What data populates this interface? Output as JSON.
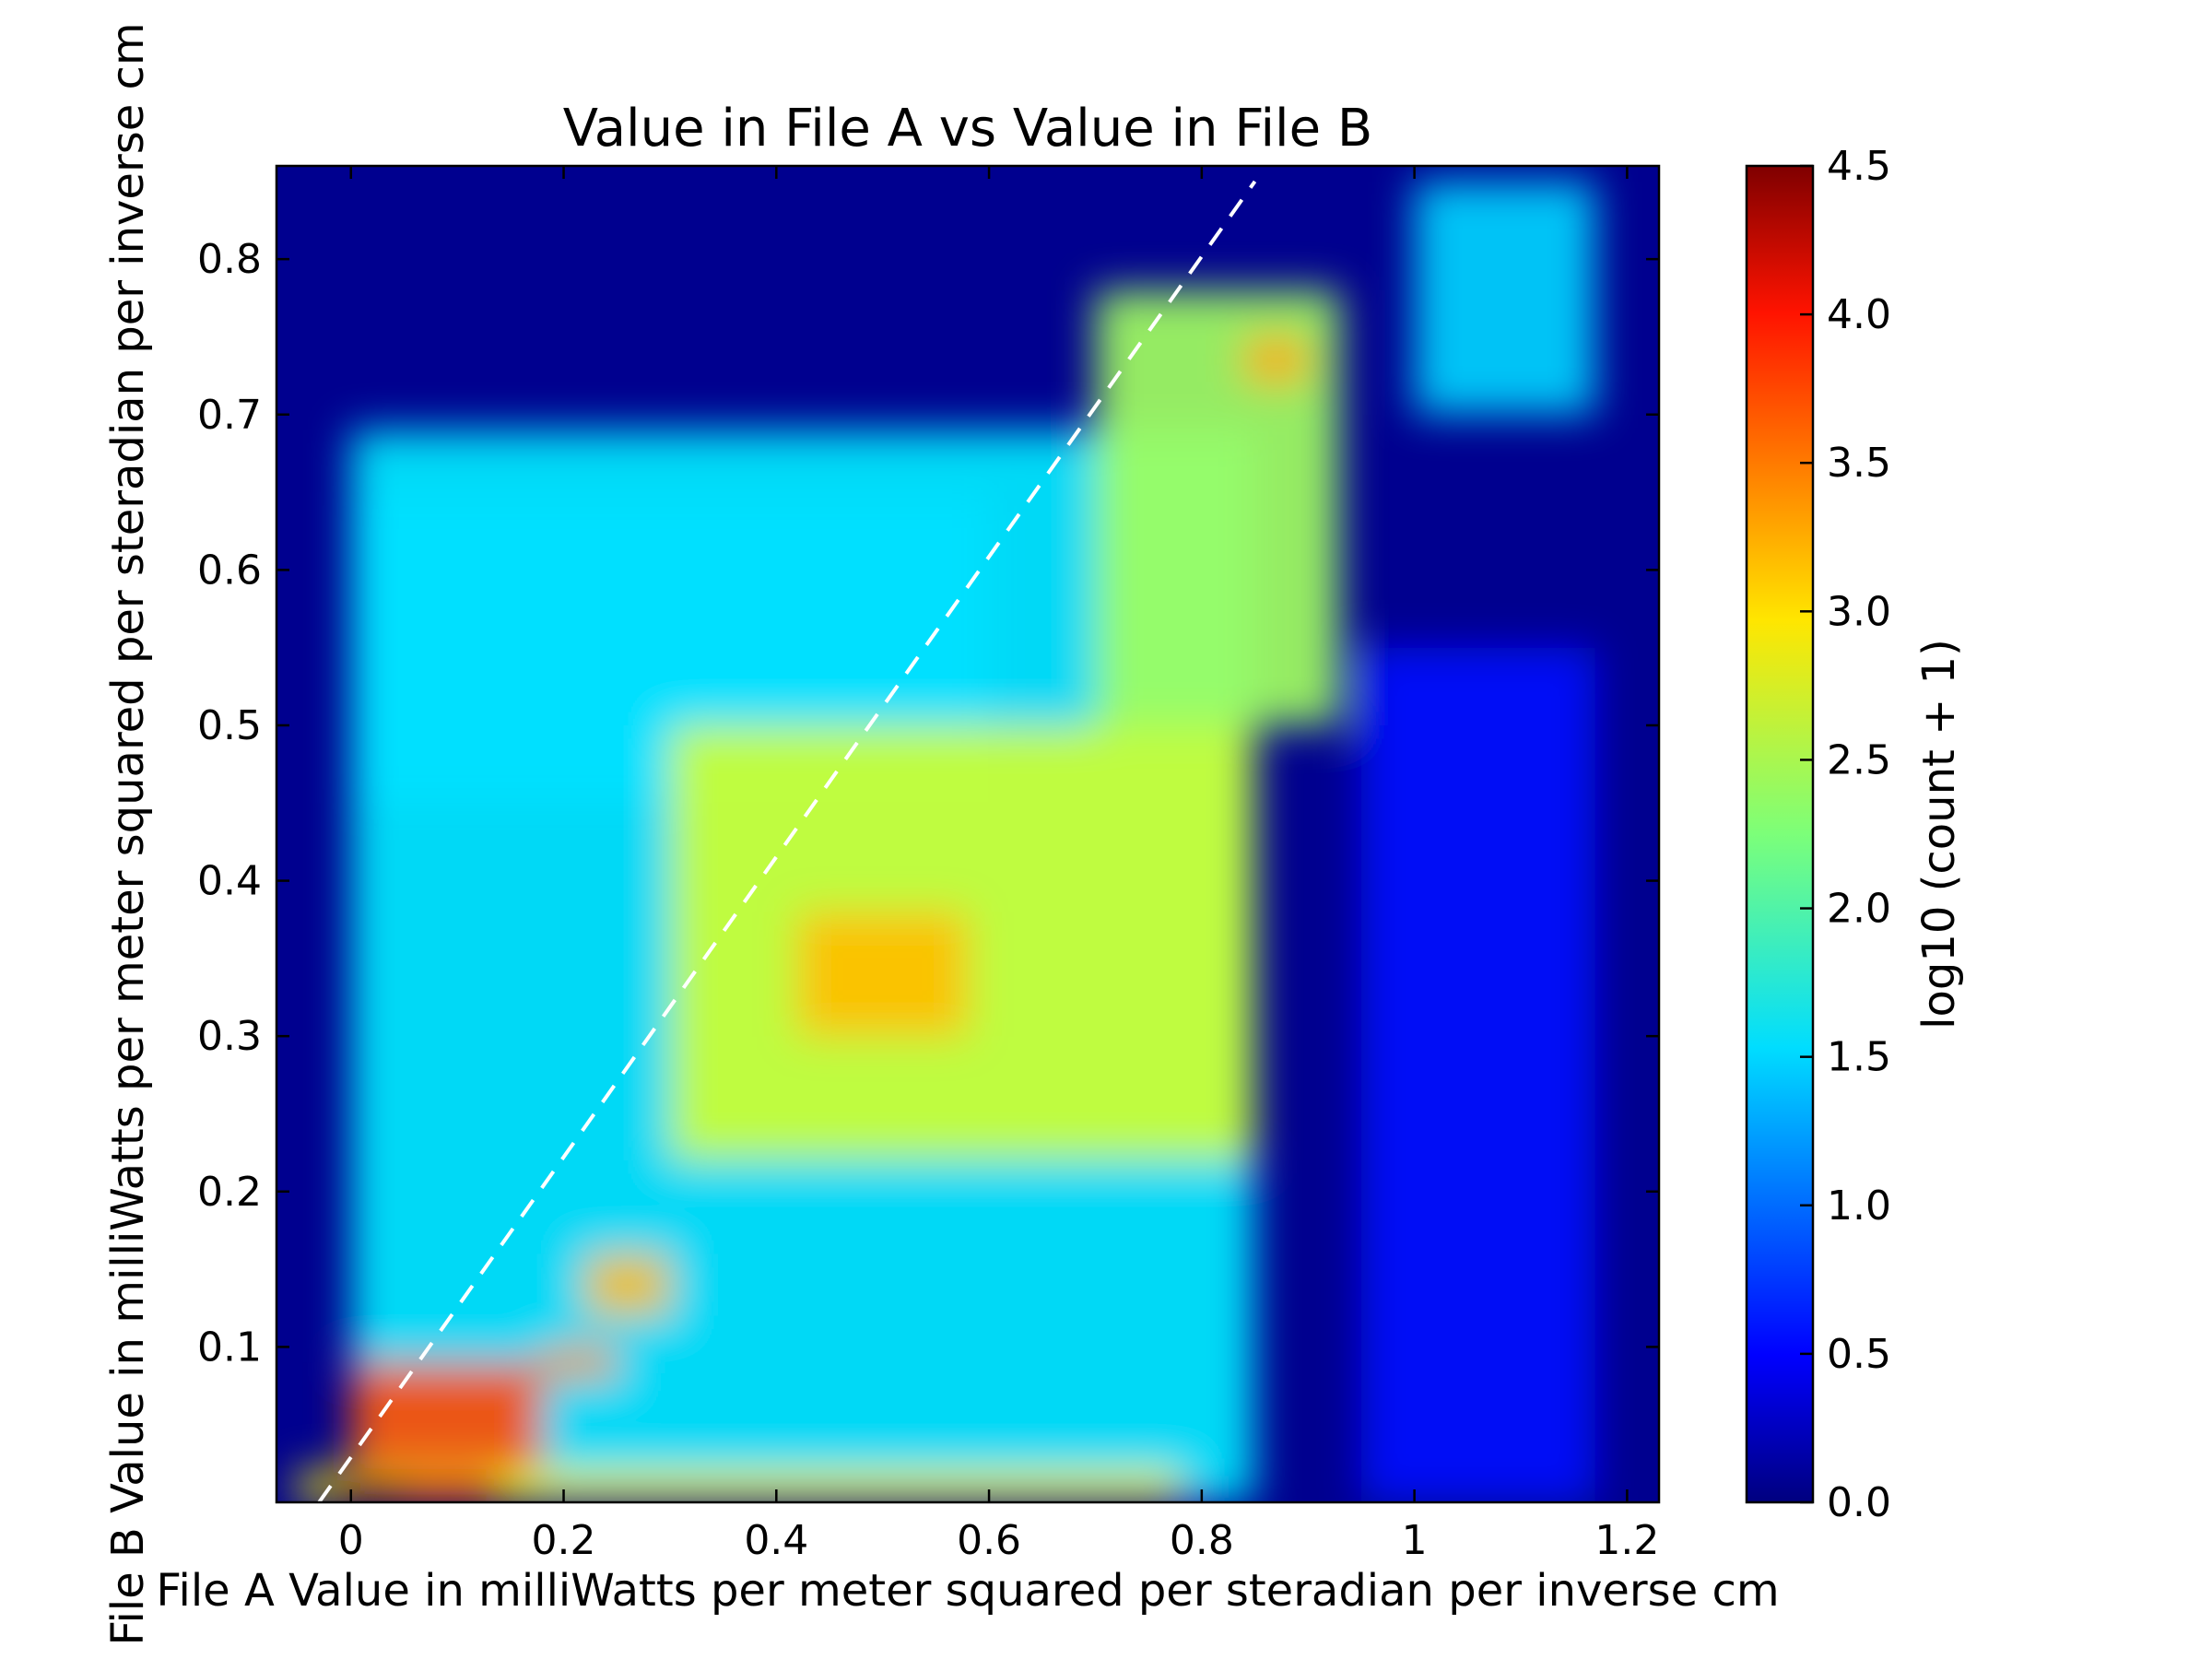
{
  "chart_data": {
    "type": "heatmap",
    "subtype": "hexbin",
    "title": "Value in File A vs Value in File B",
    "xlabel": "File A Value in milliWatts per meter squared per steradian per inverse cm",
    "ylabel": "File B Value in milliWatts per meter squared per steradian per inverse cm",
    "xlim": [
      -0.07,
      1.23
    ],
    "ylim": [
      0.0,
      0.86
    ],
    "x_ticks": [
      "0",
      "0.2",
      "0.4",
      "0.6",
      "0.8",
      "1",
      "1.2"
    ],
    "x_tick_values": [
      0,
      0.2,
      0.4,
      0.6,
      0.8,
      1.0,
      1.2
    ],
    "y_ticks": [
      "0.1",
      "0.2",
      "0.3",
      "0.4",
      "0.5",
      "0.6",
      "0.7",
      "0.8"
    ],
    "y_tick_values": [
      0.1,
      0.2,
      0.3,
      0.4,
      0.5,
      0.6,
      0.7,
      0.8
    ],
    "colorbar": {
      "label": "log10 (count + 1)",
      "range": [
        0.0,
        4.5
      ],
      "ticks": [
        "0.0",
        "0.5",
        "1.0",
        "1.5",
        "2.0",
        "2.5",
        "3.0",
        "3.5",
        "4.0",
        "4.5"
      ],
      "tick_values": [
        0.0,
        0.5,
        1.0,
        1.5,
        2.0,
        2.5,
        3.0,
        3.5,
        4.0,
        4.5
      ],
      "colormap": "jet"
    },
    "reference_line": {
      "style": "dashed",
      "color": "#ffffff",
      "from": [
        -0.03,
        0.0
      ],
      "to": [
        0.85,
        0.85
      ]
    },
    "background_color": "#00008f",
    "density_regions": [
      {
        "x": [
          -0.05,
          0.78
        ],
        "y": [
          0.0,
          0.02
        ],
        "level": 2.8
      },
      {
        "x": [
          -0.02,
          0.05
        ],
        "y": [
          0.0,
          0.015
        ],
        "level": 4.4
      },
      {
        "x": [
          0.05,
          0.14
        ],
        "y": [
          0.0,
          0.015
        ],
        "level": 4.0
      },
      {
        "x": [
          0.0,
          0.18
        ],
        "y": [
          0.02,
          0.09
        ],
        "level": 3.6
      },
      {
        "x": [
          0.18,
          0.25
        ],
        "y": [
          0.08,
          0.1
        ],
        "level": 3.3
      },
      {
        "x": [
          0.22,
          0.3
        ],
        "y": [
          0.12,
          0.16
        ],
        "level": 3.1
      },
      {
        "x": [
          0.42,
          0.58
        ],
        "y": [
          0.3,
          0.38
        ],
        "level": 3.1
      },
      {
        "x": [
          0.84,
          0.9
        ],
        "y": [
          0.72,
          0.75
        ],
        "level": 3.2
      },
      {
        "x": [
          0.3,
          0.85
        ],
        "y": [
          0.22,
          0.5
        ],
        "level": 2.6
      },
      {
        "x": [
          0.7,
          0.93
        ],
        "y": [
          0.5,
          0.78
        ],
        "level": 2.4
      },
      {
        "x": [
          0.0,
          0.85
        ],
        "y": [
          0.0,
          0.69
        ],
        "level": 1.6
      },
      {
        "x": [
          0.0,
          0.6
        ],
        "y": [
          0.45,
          0.65
        ],
        "level": 1.0
      },
      {
        "x": [
          0.95,
          1.17
        ],
        "y": [
          0.0,
          0.55
        ],
        "level": 0.6
      },
      {
        "x": [
          1.0,
          1.17
        ],
        "y": [
          0.7,
          0.85
        ],
        "level": 1.5
      }
    ]
  }
}
